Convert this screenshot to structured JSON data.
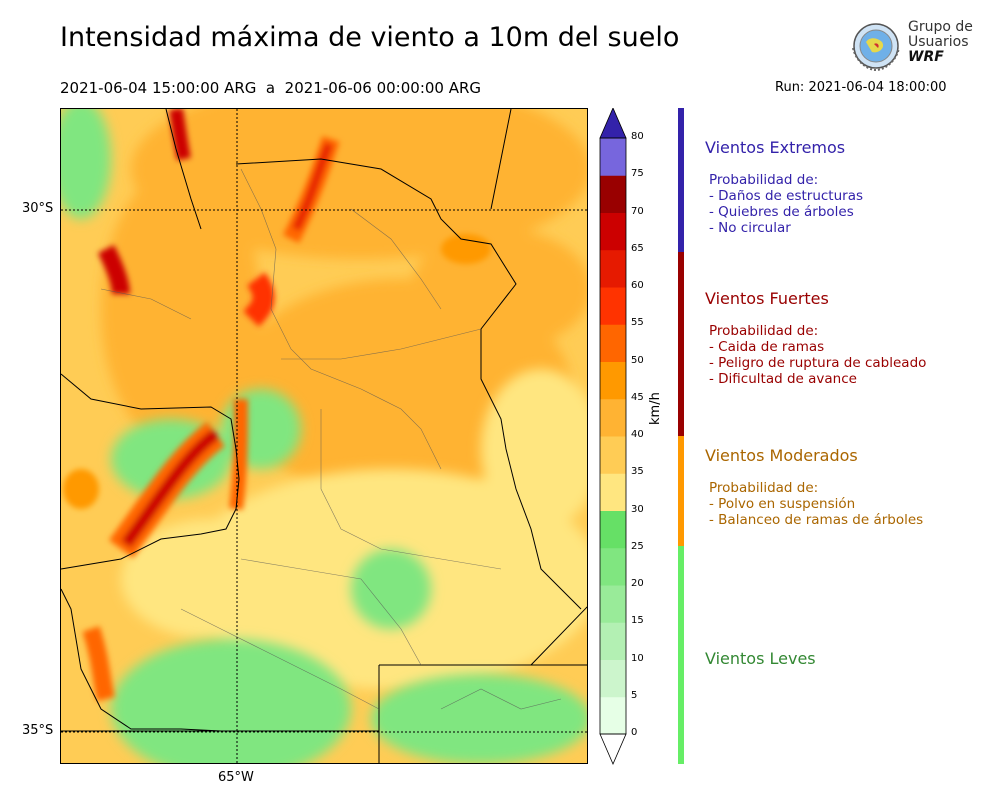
{
  "header": {
    "title": "Intensidad máxima de viento a 10m del suelo",
    "period": "2021-06-04 15:00:00 ARG  a  2021-06-06 00:00:00 ARG",
    "run": "Run: 2021-06-04 18:00:00"
  },
  "logo": {
    "line1": "Grupo de",
    "line2": "Usuarios",
    "line3": "WRF"
  },
  "map": {
    "lat_labels": [
      "30°S",
      "35°S"
    ],
    "lon_labels": [
      "65°W"
    ]
  },
  "colorbar": {
    "unit": "km/h",
    "ticks": [
      "0",
      "5",
      "10",
      "15",
      "20",
      "25",
      "30",
      "35",
      "40",
      "45",
      "50",
      "55",
      "60",
      "65",
      "70",
      "75",
      "80"
    ],
    "colors": [
      "#e6ffe6",
      "#ccf5cc",
      "#b3f0b3",
      "#99eb99",
      "#80e680",
      "#66e066",
      "#ffe680",
      "#ffcc55",
      "#ffb333",
      "#ff9900",
      "#ff6600",
      "#ff3300",
      "#e61a00",
      "#cc0000",
      "#990000",
      "#7766dd",
      "#5544cc",
      "#4433bb",
      "#3322aa",
      "#220099"
    ]
  },
  "categories": [
    {
      "title": "Vientos Extremos",
      "color": "#3322aa",
      "bar_color": "#3322aa",
      "lines": [
        "Probabilidad de:",
        "- Daños de estructuras",
        "- Quiebres de árboles",
        "- No circular"
      ]
    },
    {
      "title": "Vientos Fuertes",
      "color": "#990000",
      "bar_color": "#990000",
      "lines": [
        "Probabilidad de:",
        "- Caida de ramas",
        "- Peligro de ruptura de cableado",
        "- Dificultad de avance"
      ]
    },
    {
      "title": "Vientos Moderados",
      "color": "#aa6600",
      "bar_color": "#ff9900",
      "lines": [
        "Probabilidad de:",
        "- Polvo en suspensión",
        "- Balanceo de ramas de árboles"
      ]
    },
    {
      "title": "Vientos Leves",
      "color": "#338833",
      "bar_color": "#66ee66",
      "lines": []
    }
  ]
}
